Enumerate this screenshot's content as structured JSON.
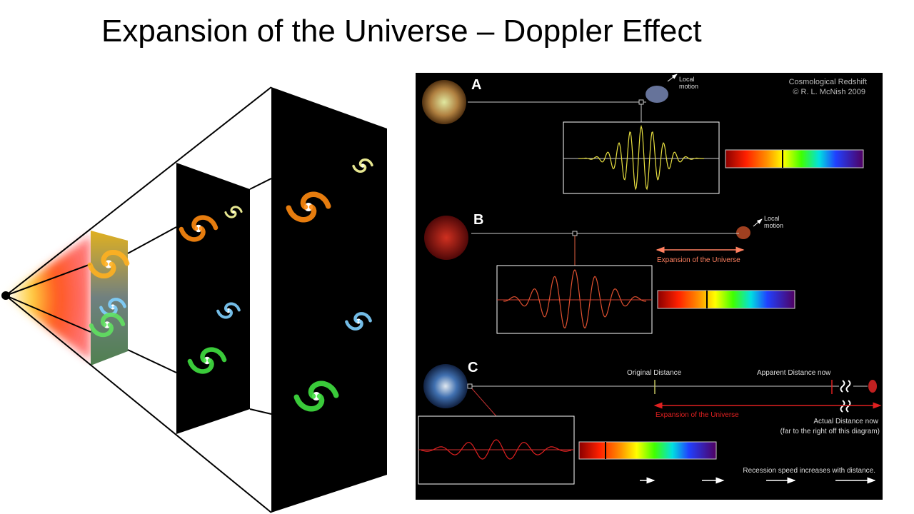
{
  "title": "Expansion of the Universe – Doppler Effect",
  "redshift_diagram": {
    "credit_title": "Cosmological Redshift",
    "credit": "© R. L. McNish 2009",
    "panels": [
      {
        "label": "A",
        "annotation": "Local motion"
      },
      {
        "label": "B",
        "annotation": "Local motion",
        "arrow_label": "Expansion of the Universe"
      },
      {
        "label": "C",
        "original_distance": "Original Distance",
        "apparent_distance": "Apparent Distance now",
        "arrow_label": "Expansion of the Universe",
        "actual_distance": "Actual Distance now",
        "actual_distance_note": "(far to the right off this diagram)",
        "footer": "Recession speed increases with distance."
      }
    ]
  }
}
